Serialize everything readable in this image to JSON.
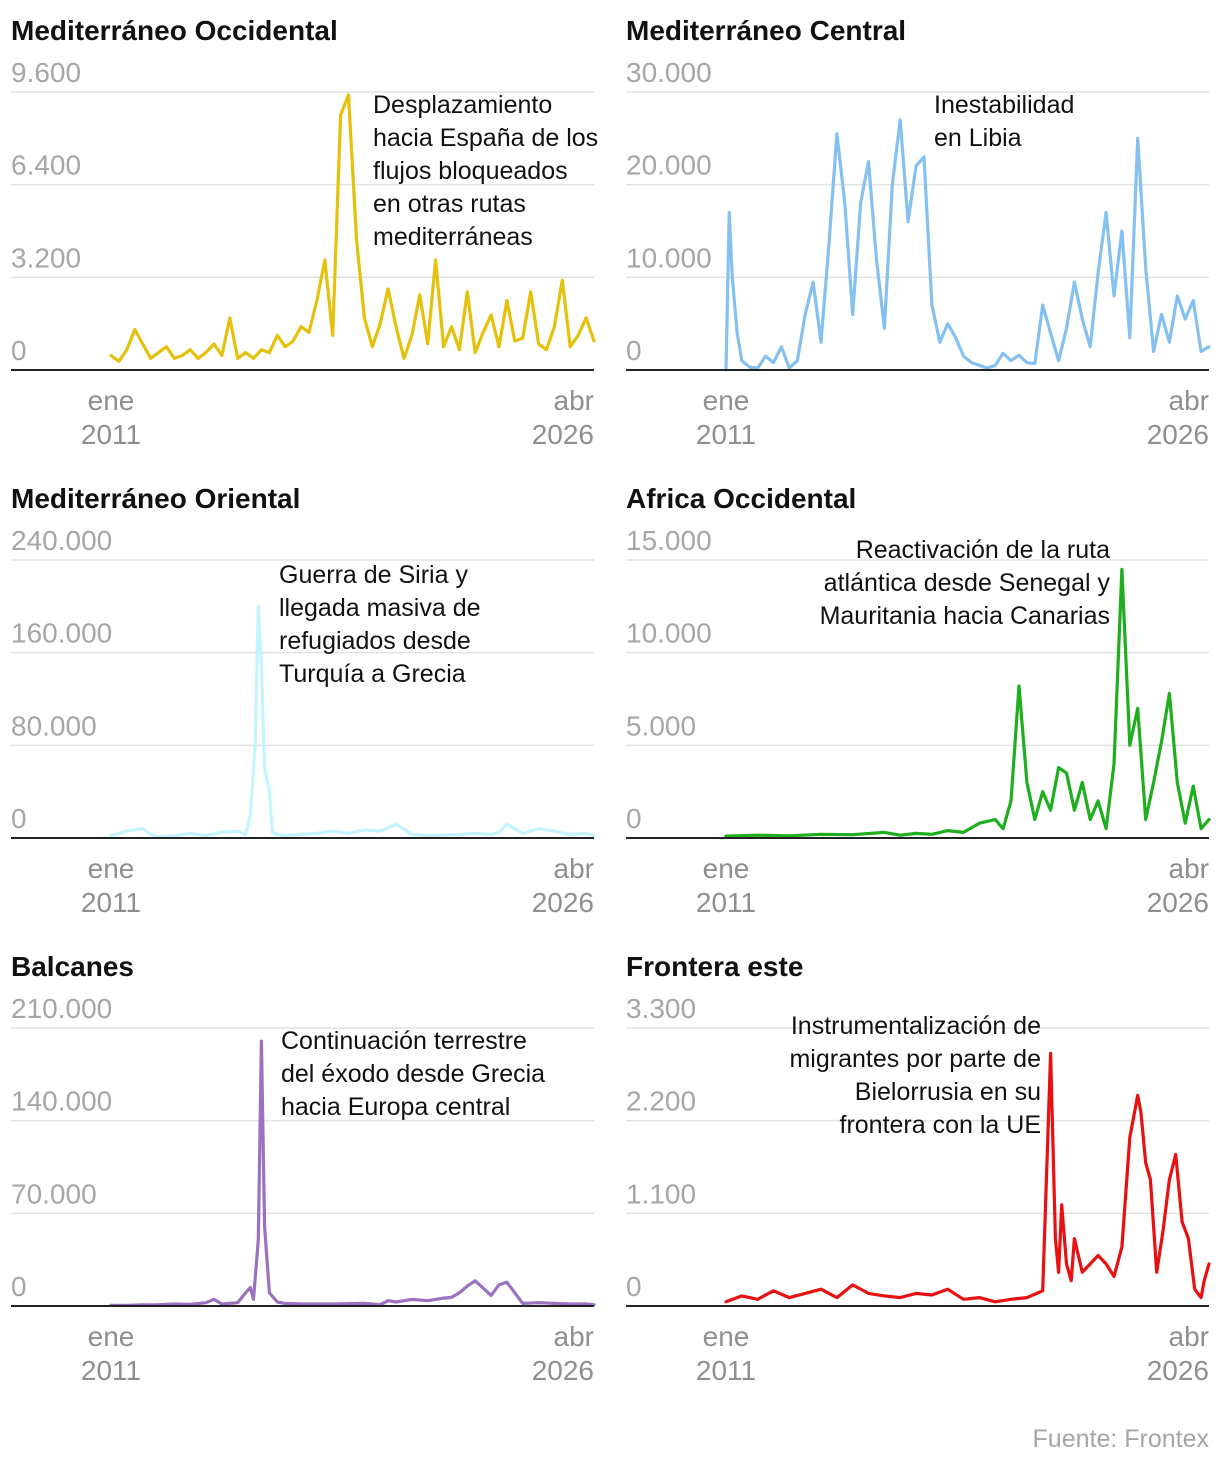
{
  "source": "Fuente: Frontex",
  "x_axis": {
    "start_top": "ene",
    "start_bottom": "2011",
    "end_top": "abr",
    "end_bottom": "2026"
  },
  "chart_data": [
    {
      "type": "line",
      "title": "Mediterráneo Occidental",
      "color": "#e6c10c",
      "yticks": [
        "0",
        "3.200",
        "6.400",
        "9.600"
      ],
      "ylim": [
        0,
        9600
      ],
      "annotation": [
        "Desplazamiento",
        "hacia España de los",
        "flujos bloqueados",
        "en otras rutas",
        "mediterráneas"
      ],
      "x": [
        2011.0,
        2011.25,
        2011.5,
        2011.75,
        2012.0,
        2012.25,
        2012.5,
        2012.75,
        2013.0,
        2013.25,
        2013.5,
        2013.75,
        2014.0,
        2014.25,
        2014.5,
        2014.75,
        2015.0,
        2015.25,
        2015.5,
        2015.75,
        2016.0,
        2016.25,
        2016.5,
        2016.75,
        2017.0,
        2017.25,
        2017.5,
        2017.75,
        2018.0,
        2018.25,
        2018.5,
        2018.75,
        2019.0,
        2019.25,
        2019.5,
        2019.75,
        2020.0,
        2020.25,
        2020.5,
        2020.75,
        2021.0,
        2021.25,
        2021.5,
        2021.75,
        2022.0,
        2022.25,
        2022.5,
        2022.75,
        2023.0,
        2023.25,
        2023.5,
        2023.75,
        2024.0,
        2024.25,
        2024.5,
        2024.75,
        2025.0,
        2025.25,
        2025.5,
        2025.75,
        2026.0,
        2026.25
      ],
      "values": [
        500,
        300,
        700,
        1400,
        900,
        400,
        600,
        800,
        400,
        500,
        700,
        400,
        600,
        900,
        500,
        1800,
        400,
        600,
        400,
        700,
        600,
        1200,
        800,
        1000,
        1500,
        1300,
        2400,
        3800,
        1200,
        8800,
        9500,
        4500,
        1800,
        800,
        1600,
        2800,
        1500,
        400,
        1200,
        2600,
        900,
        3800,
        800,
        1500,
        700,
        2700,
        600,
        1300,
        1900,
        800,
        2400,
        1000,
        1100,
        2700,
        900,
        700,
        1500,
        3100,
        800,
        1200,
        1800,
        1000
      ],
      "xlabel": "",
      "ylabel": ""
    },
    {
      "type": "line",
      "title": "Mediterráneo Central",
      "color": "#85c1f0",
      "yticks": [
        "0",
        "10.000",
        "20.000",
        "30.000"
      ],
      "ylim": [
        0,
        30000
      ],
      "annotation": [
        "Inestabilidad",
        "en Libia"
      ],
      "x": [
        2011.0,
        2011.1,
        2011.2,
        2011.35,
        2011.5,
        2011.75,
        2012.0,
        2012.25,
        2012.5,
        2012.75,
        2013.0,
        2013.25,
        2013.5,
        2013.75,
        2014.0,
        2014.25,
        2014.5,
        2014.75,
        2015.0,
        2015.25,
        2015.5,
        2015.75,
        2016.0,
        2016.25,
        2016.5,
        2016.75,
        2017.0,
        2017.25,
        2017.5,
        2017.75,
        2018.0,
        2018.25,
        2018.5,
        2018.75,
        2019.0,
        2019.25,
        2019.5,
        2019.75,
        2020.0,
        2020.25,
        2020.5,
        2020.75,
        2021.0,
        2021.25,
        2021.5,
        2021.75,
        2022.0,
        2022.25,
        2022.5,
        2022.75,
        2023.0,
        2023.25,
        2023.5,
        2023.75,
        2024.0,
        2024.25,
        2024.5,
        2024.75,
        2025.0,
        2025.25,
        2025.5,
        2025.75,
        2026.0,
        2026.25
      ],
      "values": [
        0,
        17000,
        10000,
        4000,
        1000,
        300,
        200,
        1500,
        800,
        2500,
        200,
        1000,
        6000,
        9500,
        3000,
        13500,
        25500,
        18000,
        6000,
        18000,
        22500,
        12000,
        4500,
        20000,
        27000,
        16000,
        22000,
        23000,
        7000,
        3000,
        5000,
        3500,
        1500,
        800,
        500,
        200,
        500,
        1800,
        1000,
        1600,
        800,
        700,
        7000,
        4000,
        1000,
        4500,
        9500,
        5500,
        2500,
        10500,
        17000,
        8000,
        15000,
        3500,
        25000,
        11000,
        2000,
        6000,
        3000,
        8000,
        5500,
        7500,
        2000,
        2500
      ],
      "xlabel": "",
      "ylabel": ""
    },
    {
      "type": "line",
      "title": "Mediterráneo Oriental",
      "color": "#c4f4ff",
      "yticks": [
        "0",
        "80.000",
        "160.000",
        "240.000"
      ],
      "ylim": [
        0,
        240000
      ],
      "annotation": [
        "Guerra de Siria y",
        "llegada masiva de",
        "refugiados desde",
        "Turquía a Grecia"
      ],
      "x": [
        2011.0,
        2011.5,
        2012.0,
        2012.25,
        2012.5,
        2013.0,
        2013.5,
        2014.0,
        2014.5,
        2015.0,
        2015.25,
        2015.4,
        2015.55,
        2015.65,
        2015.75,
        2015.85,
        2016.0,
        2016.1,
        2016.25,
        2016.5,
        2017.0,
        2017.5,
        2018.0,
        2018.5,
        2019.0,
        2019.5,
        2020.0,
        2020.5,
        2021.0,
        2021.5,
        2022.0,
        2022.5,
        2023.0,
        2023.25,
        2023.5,
        2024.0,
        2024.5,
        2025.0,
        2025.5,
        2026.0,
        2026.25
      ],
      "values": [
        2000,
        6000,
        8000,
        3000,
        1000,
        2000,
        4000,
        2000,
        5000,
        6000,
        3000,
        20000,
        80000,
        200000,
        150000,
        60000,
        40000,
        5000,
        3000,
        2000,
        3000,
        4000,
        6000,
        4000,
        7000,
        6000,
        12000,
        3000,
        2000,
        2500,
        3000,
        4000,
        3000,
        5000,
        12000,
        4000,
        8000,
        6000,
        3000,
        4000,
        2000
      ],
      "xlabel": "",
      "ylabel": ""
    },
    {
      "type": "line",
      "title": "Africa Occidental",
      "color": "#1eae1e",
      "yticks": [
        "0",
        "5.000",
        "10.000",
        "15.000"
      ],
      "ylim": [
        0,
        15000
      ],
      "annotation": [
        "Reactivación de la ruta",
        "atlántica desde Senegal y",
        "Mauritania hacia Canarias"
      ],
      "x": [
        2011.0,
        2012.0,
        2013.0,
        2014.0,
        2015.0,
        2016.0,
        2016.5,
        2017.0,
        2017.5,
        2018.0,
        2018.5,
        2019.0,
        2019.5,
        2019.75,
        2020.0,
        2020.25,
        2020.5,
        2020.75,
        2021.0,
        2021.25,
        2021.5,
        2021.75,
        2022.0,
        2022.25,
        2022.5,
        2022.75,
        2023.0,
        2023.25,
        2023.5,
        2023.75,
        2024.0,
        2024.25,
        2024.5,
        2024.75,
        2025.0,
        2025.25,
        2025.5,
        2025.75,
        2026.0,
        2026.25
      ],
      "values": [
        100,
        150,
        120,
        200,
        180,
        300,
        150,
        250,
        200,
        400,
        300,
        800,
        1000,
        500,
        2000,
        8200,
        3000,
        1000,
        2500,
        1500,
        3800,
        3500,
        1500,
        3000,
        1000,
        2000,
        500,
        4000,
        14500,
        5000,
        7000,
        1000,
        3000,
        5200,
        7800,
        3000,
        800,
        2800,
        500,
        1000
      ],
      "xlabel": "",
      "ylabel": ""
    },
    {
      "type": "line",
      "title": "Balcanes",
      "color": "#9b72c0",
      "yticks": [
        "0",
        "70.000",
        "140.000",
        "210.000"
      ],
      "ylim": [
        0,
        210000
      ],
      "annotation": [
        "Continuación terrestre",
        "del éxodo desde Grecia",
        "hacia Europa central"
      ],
      "x": [
        2011.0,
        2011.5,
        2012.0,
        2012.5,
        2013.0,
        2013.5,
        2014.0,
        2014.25,
        2014.5,
        2015.0,
        2015.25,
        2015.4,
        2015.5,
        2015.65,
        2015.75,
        2015.85,
        2016.0,
        2016.25,
        2016.5,
        2017.0,
        2018.0,
        2019.0,
        2019.5,
        2019.75,
        2020.0,
        2020.5,
        2021.0,
        2021.5,
        2021.75,
        2022.0,
        2022.25,
        2022.5,
        2023.0,
        2023.25,
        2023.5,
        2024.0,
        2024.5,
        2025.0,
        2025.5,
        2026.0,
        2026.25
      ],
      "values": [
        500,
        500,
        800,
        1000,
        1500,
        1200,
        2500,
        5000,
        1500,
        2500,
        10000,
        14000,
        5000,
        50000,
        200000,
        60000,
        10000,
        3000,
        2000,
        1500,
        1500,
        2000,
        1000,
        4000,
        3000,
        5000,
        4000,
        6000,
        6500,
        10000,
        15000,
        19000,
        8000,
        16000,
        18000,
        2000,
        2500,
        2000,
        1500,
        1500,
        1000
      ],
      "xlabel": "",
      "ylabel": ""
    },
    {
      "type": "line",
      "title": "Frontera este",
      "color": "#e81010",
      "yticks": [
        "0",
        "1.100",
        "2.200",
        "3.300"
      ],
      "ylim": [
        0,
        3300
      ],
      "annotation": [
        "Instrumentalización de",
        "migrantes por parte de",
        "Bielorrusia en su",
        "frontera con la UE"
      ],
      "x": [
        2011.0,
        2011.5,
        2012.0,
        2012.5,
        2013.0,
        2013.5,
        2014.0,
        2014.5,
        2015.0,
        2015.5,
        2016.0,
        2016.5,
        2017.0,
        2017.5,
        2018.0,
        2018.5,
        2019.0,
        2019.5,
        2020.0,
        2020.5,
        2021.0,
        2021.25,
        2021.4,
        2021.5,
        2021.6,
        2021.75,
        2021.9,
        2022.0,
        2022.25,
        2022.5,
        2022.75,
        2023.0,
        2023.25,
        2023.5,
        2023.75,
        2024.0,
        2024.1,
        2024.25,
        2024.4,
        2024.6,
        2024.8,
        2025.0,
        2025.2,
        2025.4,
        2025.6,
        2025.8,
        2026.0,
        2026.1,
        2026.25
      ],
      "values": [
        50,
        120,
        80,
        180,
        100,
        150,
        200,
        100,
        250,
        150,
        120,
        100,
        150,
        130,
        200,
        80,
        100,
        50,
        80,
        100,
        180,
        3000,
        800,
        400,
        1200,
        500,
        300,
        800,
        400,
        500,
        600,
        500,
        350,
        700,
        2000,
        2500,
        2300,
        1700,
        1500,
        400,
        900,
        1500,
        1800,
        1000,
        800,
        200,
        100,
        300,
        500
      ],
      "xlabel": "",
      "ylabel": ""
    }
  ]
}
